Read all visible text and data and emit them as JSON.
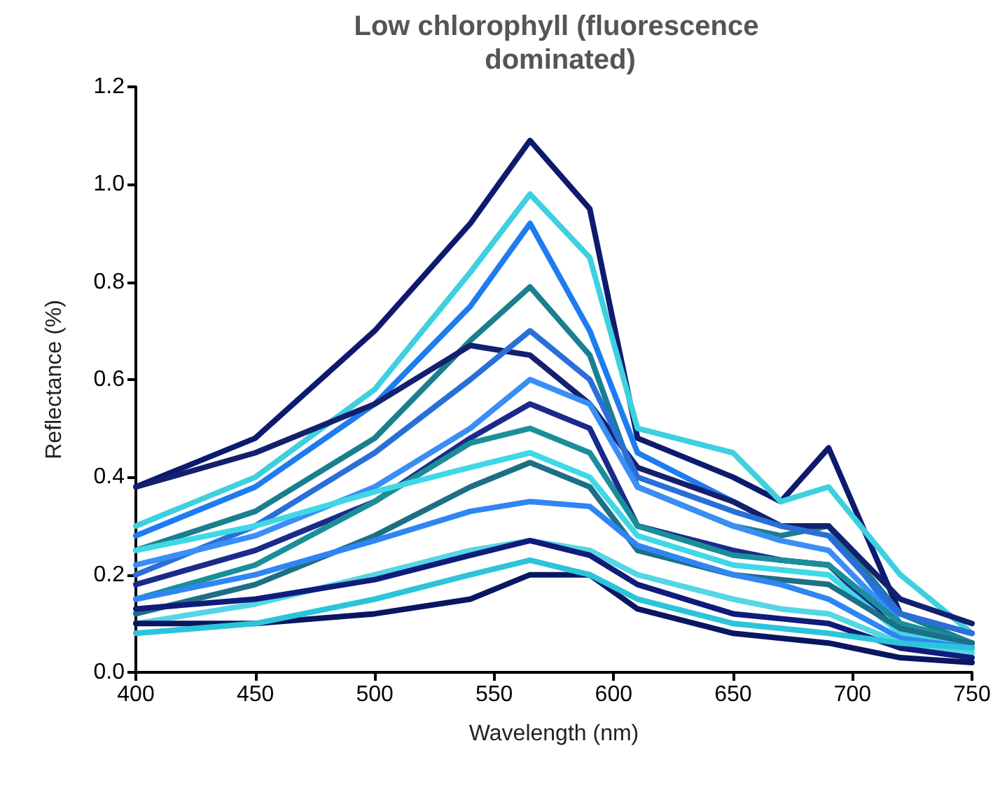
{
  "chart_data": {
    "type": "line",
    "title": "Low chlorophyll (fluorescence dominated)",
    "xlabel": "Wavelength (nm)",
    "ylabel": "Reflectance (%)",
    "xlim": [
      400,
      750
    ],
    "xticks": [
      400,
      450,
      500,
      550,
      600,
      650,
      700,
      750
    ],
    "ylim": [
      0,
      1.2
    ],
    "yticks": [
      {
        "value": 0,
        "label": "0.0"
      },
      {
        "value": 0.2,
        "label": "0.2"
      },
      {
        "value": 0.4,
        "label": "0.4"
      },
      {
        "value": 0.6,
        "label": "0.6"
      },
      {
        "value": 0.8,
        "label": "0.8"
      },
      {
        "value": 1.0,
        "label": "1.0"
      },
      {
        "value": 1.2,
        "label": "1.2"
      }
    ],
    "grid": false,
    "marker": "none",
    "line_style": "solid",
    "x": [
      400,
      450,
      500,
      540,
      565,
      590,
      610,
      650,
      670,
      690,
      720,
      750
    ],
    "series": [
      {
        "color": "#0d1a6e",
        "values": [
          0.38,
          0.48,
          0.7,
          0.92,
          1.09,
          0.95,
          0.48,
          0.4,
          0.35,
          0.46,
          0.12,
          0.08
        ]
      },
      {
        "color": "#3fd0e0",
        "values": [
          0.3,
          0.4,
          0.58,
          0.82,
          0.98,
          0.85,
          0.5,
          0.45,
          0.35,
          0.38,
          0.2,
          0.08
        ]
      },
      {
        "color": "#1e7cf0",
        "values": [
          0.28,
          0.38,
          0.55,
          0.75,
          0.92,
          0.7,
          0.45,
          0.35,
          0.3,
          0.3,
          0.1,
          0.06
        ]
      },
      {
        "color": "#1a7f8e",
        "values": [
          0.25,
          0.33,
          0.48,
          0.68,
          0.79,
          0.65,
          0.38,
          0.3,
          0.28,
          0.3,
          0.12,
          0.06
        ]
      },
      {
        "color": "#14206e",
        "values": [
          0.38,
          0.45,
          0.55,
          0.67,
          0.65,
          0.55,
          0.42,
          0.35,
          0.3,
          0.3,
          0.15,
          0.1
        ]
      },
      {
        "color": "#2a6fd8",
        "values": [
          0.2,
          0.3,
          0.45,
          0.6,
          0.7,
          0.6,
          0.4,
          0.33,
          0.3,
          0.28,
          0.12,
          0.08
        ]
      },
      {
        "color": "#3a8ef5",
        "values": [
          0.22,
          0.28,
          0.38,
          0.5,
          0.6,
          0.55,
          0.38,
          0.3,
          0.27,
          0.25,
          0.1,
          0.06
        ]
      },
      {
        "color": "#1b2a8a",
        "values": [
          0.18,
          0.25,
          0.35,
          0.48,
          0.55,
          0.5,
          0.3,
          0.25,
          0.23,
          0.22,
          0.08,
          0.05
        ]
      },
      {
        "color": "#1a8f9a",
        "values": [
          0.15,
          0.22,
          0.35,
          0.47,
          0.5,
          0.45,
          0.3,
          0.24,
          0.23,
          0.22,
          0.1,
          0.06
        ]
      },
      {
        "color": "#40d8e6",
        "values": [
          0.25,
          0.3,
          0.37,
          0.42,
          0.45,
          0.4,
          0.28,
          0.22,
          0.21,
          0.2,
          0.08,
          0.05
        ]
      },
      {
        "color": "#1d6f86",
        "values": [
          0.12,
          0.18,
          0.28,
          0.38,
          0.43,
          0.38,
          0.25,
          0.2,
          0.19,
          0.18,
          0.09,
          0.06
        ]
      },
      {
        "color": "#2f86f2",
        "values": [
          0.15,
          0.2,
          0.27,
          0.33,
          0.35,
          0.34,
          0.26,
          0.2,
          0.18,
          0.15,
          0.07,
          0.05
        ]
      },
      {
        "color": "#55d6e4",
        "values": [
          0.1,
          0.14,
          0.2,
          0.25,
          0.27,
          0.25,
          0.2,
          0.15,
          0.13,
          0.12,
          0.06,
          0.04
        ]
      },
      {
        "color": "#101c7a",
        "values": [
          0.13,
          0.15,
          0.19,
          0.24,
          0.27,
          0.24,
          0.18,
          0.12,
          0.11,
          0.1,
          0.05,
          0.03
        ]
      },
      {
        "color": "#0b1660",
        "values": [
          0.1,
          0.1,
          0.12,
          0.15,
          0.2,
          0.2,
          0.13,
          0.08,
          0.07,
          0.06,
          0.03,
          0.02
        ]
      },
      {
        "color": "#2cc4da",
        "values": [
          0.08,
          0.1,
          0.15,
          0.2,
          0.23,
          0.2,
          0.15,
          0.1,
          0.09,
          0.08,
          0.06,
          0.05
        ]
      }
    ]
  }
}
